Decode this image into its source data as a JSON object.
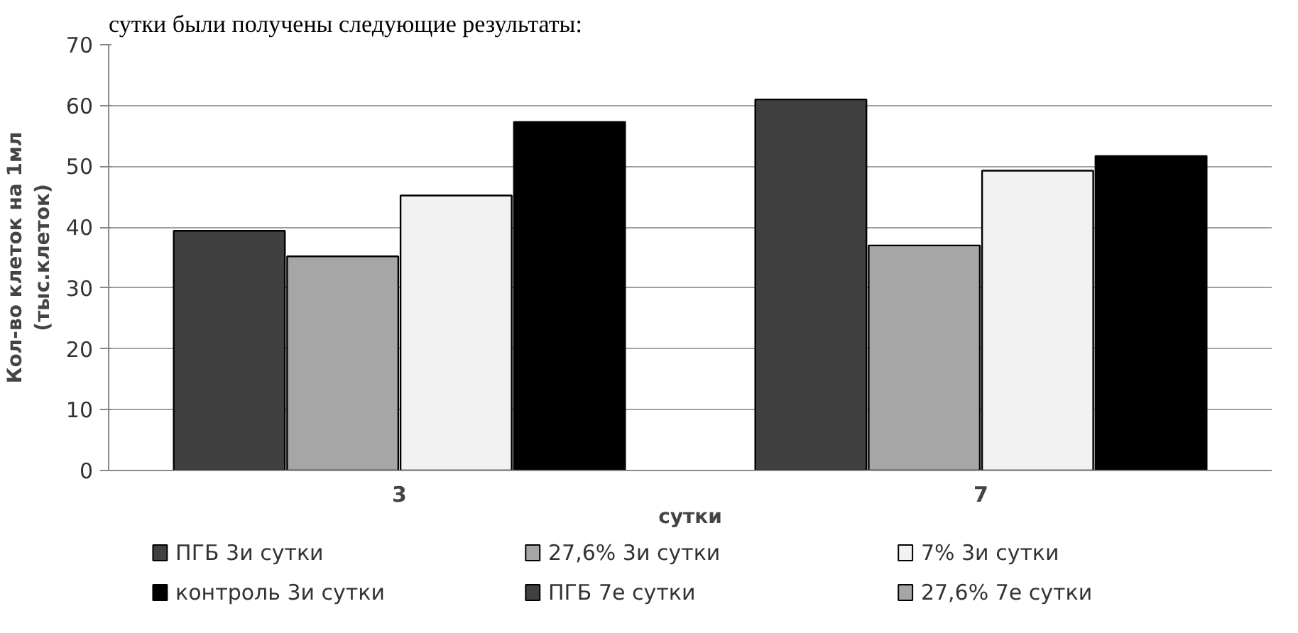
{
  "chart_data": {
    "type": "bar",
    "annotations": [
      "сутки были получены следующие результаты:"
    ],
    "xlabel": "сутки",
    "ylabel": "Кол-во клеток на 1мл\n(тыс.клеток)",
    "categories": [
      "3",
      "7"
    ],
    "series": [
      {
        "name": "ПГБ 3и сутки",
        "color": "#404040",
        "values": [
          39.4,
          null
        ]
      },
      {
        "name": " 27,6%  3и сутки",
        "color": "#a6a6a6",
        "values": [
          35.2,
          null
        ]
      },
      {
        "name": "7% 3и сутки",
        "color": "#f2f2f2",
        "values": [
          45.2,
          null
        ]
      },
      {
        "name": "контроль 3и сутки",
        "color": "#000000",
        "values": [
          57.3,
          null
        ]
      },
      {
        "name": "ПГБ 7е сутки",
        "color": "#404040",
        "values": [
          null,
          61.0
        ]
      },
      {
        "name": "27,6% 7е сутки",
        "color": "#a6a6a6",
        "values": [
          null,
          37.0
        ]
      },
      {
        "color": "#f2f2f2",
        "values": [
          null,
          49.3
        ]
      },
      {
        "color": "#000000",
        "values": [
          null,
          51.7
        ]
      }
    ],
    "ylim": [
      0,
      70
    ],
    "yticks": [
      0,
      10,
      20,
      30,
      40,
      50,
      60,
      70
    ],
    "grid": "y",
    "legend": "bottom"
  }
}
